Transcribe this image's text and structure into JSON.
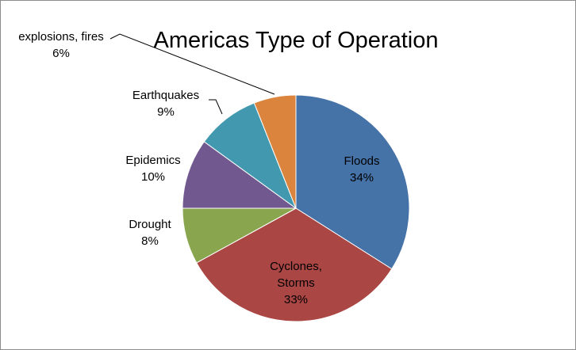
{
  "chart_data": {
    "type": "pie",
    "title": "Americas Type of Operation",
    "slices": [
      {
        "name": "Floods",
        "value": 34,
        "label_lines": [
          "Floods",
          "34%"
        ],
        "color": "#4572A7"
      },
      {
        "name": "Cyclones, Storms",
        "value": 33,
        "label_lines": [
          "Cyclones,",
          "Storms",
          "33%"
        ],
        "color": "#AA4643"
      },
      {
        "name": "Drought",
        "value": 8,
        "label_lines": [
          "Drought",
          "8%"
        ],
        "color": "#89A54E"
      },
      {
        "name": "Epidemics",
        "value": 10,
        "label_lines": [
          "Epidemics",
          "10%"
        ],
        "color": "#71588F"
      },
      {
        "name": "Earthquakes",
        "value": 9,
        "label_lines": [
          "Earthquakes",
          "9%"
        ],
        "color": "#4198AF"
      },
      {
        "name": "explosions, fires",
        "value": 6,
        "label_lines": [
          "explosions, fires",
          "6%"
        ],
        "color": "#DB843D"
      }
    ],
    "start_angle": "12 o'clock",
    "direction": "clockwise",
    "legend": "none"
  }
}
